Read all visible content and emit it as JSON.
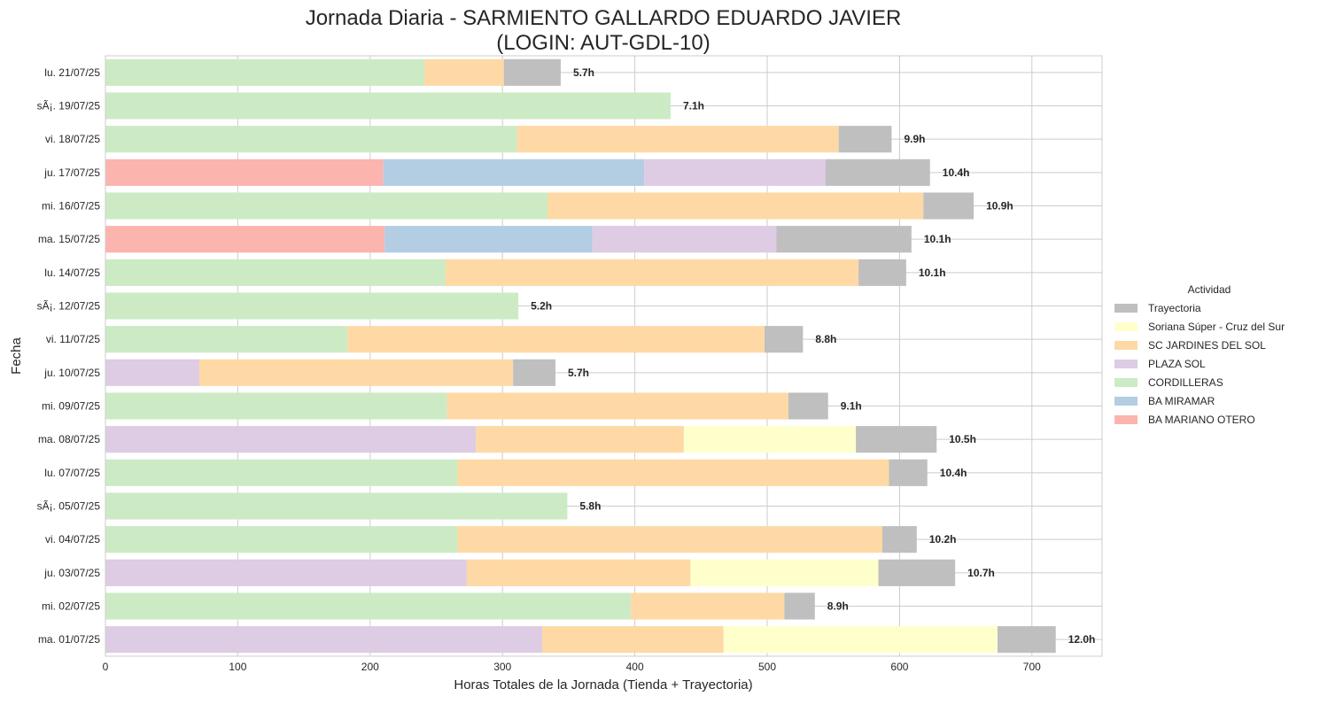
{
  "chart_data": {
    "type": "bar",
    "orientation": "horizontal",
    "stacked": true,
    "title": [
      "Jornada Diaria - SARMIENTO GALLARDO EDUARDO JAVIER",
      "(LOGIN: AUT-GDL-10)"
    ],
    "xlabel": "Horas Totales de la Jornada (Tienda + Trayectoria)",
    "ylabel": "Fecha",
    "xlim": [
      0,
      753
    ],
    "xticks": [
      0,
      100,
      200,
      300,
      400,
      500,
      600,
      700
    ],
    "grid": true,
    "legend_placement": "center-right",
    "legend": {
      "title": "Actividad",
      "items": [
        {
          "name": "Trayectoria",
          "color": "#bfbfbf"
        },
        {
          "name": "Soriana Súper - Cruz del Sur",
          "color": "#ffffcc"
        },
        {
          "name": "SC JARDINES DEL SOL",
          "color": "#fed9a6"
        },
        {
          "name": "PLAZA SOL",
          "color": "#decbe4"
        },
        {
          "name": "CORDILLERAS",
          "color": "#ccebc5"
        },
        {
          "name": "BA MIRAMAR",
          "color": "#b3cde3"
        },
        {
          "name": "BA MARIANO OTERO",
          "color": "#fbb4ae"
        }
      ]
    },
    "rows": [
      {
        "date": "lu. 21/07/25",
        "total_label": "5.7h",
        "segments": [
          {
            "series": "CORDILLERAS",
            "value": 241
          },
          {
            "series": "SC JARDINES DEL SOL",
            "value": 60
          },
          {
            "series": "Trayectoria",
            "value": 43
          }
        ]
      },
      {
        "date": "sÃ¡. 19/07/25",
        "total_label": "7.1h",
        "segments": [
          {
            "series": "CORDILLERAS",
            "value": 427
          }
        ]
      },
      {
        "date": "vi. 18/07/25",
        "total_label": "9.9h",
        "segments": [
          {
            "series": "CORDILLERAS",
            "value": 311
          },
          {
            "series": "SC JARDINES DEL SOL",
            "value": 243
          },
          {
            "series": "Trayectoria",
            "value": 40
          }
        ]
      },
      {
        "date": "ju. 17/07/25",
        "total_label": "10.4h",
        "segments": [
          {
            "series": "BA MARIANO OTERO",
            "value": 210
          },
          {
            "series": "BA MIRAMAR",
            "value": 197
          },
          {
            "series": "PLAZA SOL",
            "value": 137
          },
          {
            "series": "Trayectoria",
            "value": 79
          }
        ]
      },
      {
        "date": "mi. 16/07/25",
        "total_label": "10.9h",
        "segments": [
          {
            "series": "CORDILLERAS",
            "value": 334
          },
          {
            "series": "SC JARDINES DEL SOL",
            "value": 284
          },
          {
            "series": "Trayectoria",
            "value": 38
          }
        ]
      },
      {
        "date": "ma. 15/07/25",
        "total_label": "10.1h",
        "segments": [
          {
            "series": "BA MARIANO OTERO",
            "value": 211
          },
          {
            "series": "BA MIRAMAR",
            "value": 157
          },
          {
            "series": "PLAZA SOL",
            "value": 139
          },
          {
            "series": "Trayectoria",
            "value": 102
          }
        ]
      },
      {
        "date": "lu. 14/07/25",
        "total_label": "10.1h",
        "segments": [
          {
            "series": "CORDILLERAS",
            "value": 257
          },
          {
            "series": "SC JARDINES DEL SOL",
            "value": 312
          },
          {
            "series": "Trayectoria",
            "value": 36
          }
        ]
      },
      {
        "date": "sÃ¡. 12/07/25",
        "total_label": "5.2h",
        "segments": [
          {
            "series": "CORDILLERAS",
            "value": 312
          }
        ]
      },
      {
        "date": "vi. 11/07/25",
        "total_label": "8.8h",
        "segments": [
          {
            "series": "CORDILLERAS",
            "value": 183
          },
          {
            "series": "SC JARDINES DEL SOL",
            "value": 315
          },
          {
            "series": "Trayectoria",
            "value": 29
          }
        ]
      },
      {
        "date": "ju. 10/07/25",
        "total_label": "5.7h",
        "segments": [
          {
            "series": "PLAZA SOL",
            "value": 71
          },
          {
            "series": "SC JARDINES DEL SOL",
            "value": 237
          },
          {
            "series": "Trayectoria",
            "value": 32
          }
        ]
      },
      {
        "date": "mi. 09/07/25",
        "total_label": "9.1h",
        "segments": [
          {
            "series": "CORDILLERAS",
            "value": 258
          },
          {
            "series": "SC JARDINES DEL SOL",
            "value": 258
          },
          {
            "series": "Trayectoria",
            "value": 30
          }
        ]
      },
      {
        "date": "ma. 08/07/25",
        "total_label": "10.5h",
        "segments": [
          {
            "series": "PLAZA SOL",
            "value": 280
          },
          {
            "series": "SC JARDINES DEL SOL",
            "value": 157
          },
          {
            "series": "Soriana Súper - Cruz del Sur",
            "value": 130
          },
          {
            "series": "Trayectoria",
            "value": 61
          }
        ]
      },
      {
        "date": "lu. 07/07/25",
        "total_label": "10.4h",
        "segments": [
          {
            "series": "CORDILLERAS",
            "value": 266
          },
          {
            "series": "SC JARDINES DEL SOL",
            "value": 326
          },
          {
            "series": "Trayectoria",
            "value": 29
          }
        ]
      },
      {
        "date": "sÃ¡. 05/07/25",
        "total_label": "5.8h",
        "segments": [
          {
            "series": "CORDILLERAS",
            "value": 349
          }
        ]
      },
      {
        "date": "vi. 04/07/25",
        "total_label": "10.2h",
        "segments": [
          {
            "series": "CORDILLERAS",
            "value": 266
          },
          {
            "series": "SC JARDINES DEL SOL",
            "value": 321
          },
          {
            "series": "Trayectoria",
            "value": 26
          }
        ]
      },
      {
        "date": "ju. 03/07/25",
        "total_label": "10.7h",
        "segments": [
          {
            "series": "PLAZA SOL",
            "value": 273
          },
          {
            "series": "SC JARDINES DEL SOL",
            "value": 169
          },
          {
            "series": "Soriana Súper - Cruz del Sur",
            "value": 142
          },
          {
            "series": "Trayectoria",
            "value": 58
          }
        ]
      },
      {
        "date": "mi. 02/07/25",
        "total_label": "8.9h",
        "segments": [
          {
            "series": "CORDILLERAS",
            "value": 397
          },
          {
            "series": "SC JARDINES DEL SOL",
            "value": 116
          },
          {
            "series": "Trayectoria",
            "value": 23
          }
        ]
      },
      {
        "date": "ma. 01/07/25",
        "total_label": "12.0h",
        "segments": [
          {
            "series": "PLAZA SOL",
            "value": 330
          },
          {
            "series": "SC JARDINES DEL SOL",
            "value": 137
          },
          {
            "series": "Soriana Súper - Cruz del Sur",
            "value": 207
          },
          {
            "series": "Trayectoria",
            "value": 44
          }
        ]
      }
    ]
  }
}
